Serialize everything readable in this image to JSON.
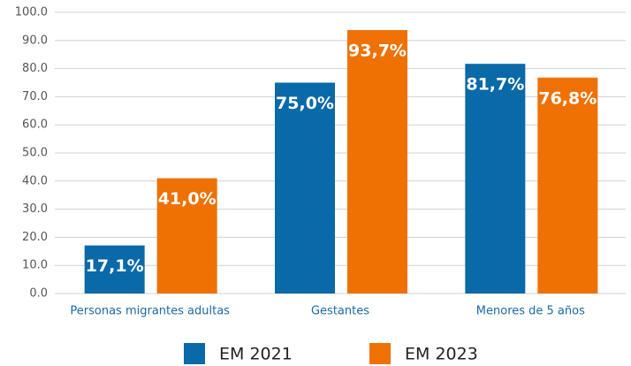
{
  "chart_data": {
    "type": "bar",
    "categories": [
      "Personas migrantes adultas",
      "Gestantes",
      "Menores de 5 años"
    ],
    "series": [
      {
        "name": "EM 2021",
        "color": "#0a69a8",
        "values": [
          17.1,
          75.0,
          81.7
        ],
        "value_labels": [
          "17,1%",
          "75,0%",
          "81,7%"
        ]
      },
      {
        "name": "EM 2023",
        "color": "#ef7103",
        "values": [
          41.0,
          93.7,
          76.8
        ],
        "value_labels": [
          "41,0%",
          "93,7%",
          "76,8%"
        ]
      }
    ],
    "ylim": [
      0,
      100
    ],
    "yticks": [
      {
        "value": 0,
        "label": "0.0"
      },
      {
        "value": 10,
        "label": "10.0"
      },
      {
        "value": 20,
        "label": "20.0"
      },
      {
        "value": 30,
        "label": "30.0"
      },
      {
        "value": 40,
        "label": "40.0"
      },
      {
        "value": 50,
        "label": "50.0"
      },
      {
        "value": 60,
        "label": "60.0"
      },
      {
        "value": 70,
        "label": "70.0"
      },
      {
        "value": 80,
        "label": "80.0"
      },
      {
        "value": 90,
        "label": "90.0"
      },
      {
        "value": 100,
        "label": "100.0"
      }
    ],
    "grid": true,
    "legend": "bottom"
  }
}
